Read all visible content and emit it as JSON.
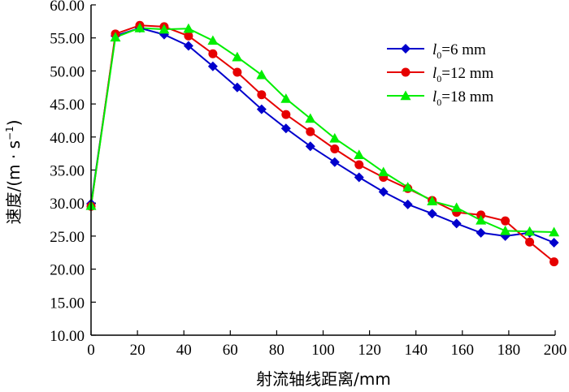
{
  "chart_data": {
    "type": "line",
    "xlabel": "射流轴线距离/mm",
    "ylabel": "速度/(m · s⁻¹)",
    "ylabel_parts": {
      "main": "速度/(m · s",
      "sup": "−1",
      "close": ")"
    },
    "xlim": [
      0,
      200
    ],
    "ylim": [
      10,
      60
    ],
    "x_ticks": [
      "0",
      "20",
      "40",
      "60",
      "80",
      "100",
      "120",
      "140",
      "160",
      "180",
      "200"
    ],
    "y_ticks": [
      "10.00",
      "15.00",
      "20.00",
      "25.00",
      "30.00",
      "35.00",
      "40.00",
      "45.00",
      "50.00",
      "55.00",
      "60.00"
    ],
    "grid": false,
    "legend_position": "top-right",
    "series": [
      {
        "name": "l0=6 mm",
        "label_italic": "l",
        "label_sub": "0",
        "label_rest": "=6 mm",
        "color": "#0000cc",
        "marker": "diamond",
        "x": [
          0,
          10.5,
          21,
          31.5,
          42,
          52.5,
          63,
          73.5,
          84,
          94.5,
          105,
          115.5,
          126,
          136.5,
          147,
          157.5,
          168,
          178.5,
          189,
          199.5
        ],
        "values": [
          29.9,
          55.3,
          56.5,
          55.5,
          53.8,
          50.7,
          47.5,
          44.2,
          41.3,
          38.6,
          36.2,
          33.9,
          31.7,
          29.8,
          28.4,
          26.9,
          25.5,
          25.0,
          25.5,
          24.0
        ]
      },
      {
        "name": "l0=12 mm",
        "label_italic": "l",
        "label_sub": "0",
        "label_rest": "=12 mm",
        "color": "#e60000",
        "marker": "circle",
        "x": [
          0,
          10.5,
          21,
          31.5,
          42,
          52.5,
          63,
          73.5,
          84,
          94.5,
          105,
          115.5,
          126,
          136.5,
          147,
          157.5,
          168,
          178.5,
          189,
          199.5
        ],
        "values": [
          29.5,
          55.6,
          56.9,
          56.7,
          55.3,
          52.6,
          49.8,
          46.4,
          43.4,
          40.8,
          38.2,
          35.8,
          33.9,
          32.2,
          30.4,
          28.6,
          28.2,
          27.3,
          24.1,
          21.1
        ]
      },
      {
        "name": "l0=18 mm",
        "label_italic": "l",
        "label_sub": "0",
        "label_rest": "=18 mm",
        "color": "#00ee00",
        "marker": "triangle",
        "x": [
          0,
          10.5,
          21,
          31.5,
          42,
          52.5,
          63,
          73.5,
          84,
          94.5,
          105,
          115.5,
          126,
          136.5,
          147,
          157.5,
          168,
          178.5,
          189,
          199.5
        ],
        "values": [
          29.6,
          55.1,
          56.5,
          56.3,
          56.4,
          54.6,
          52.1,
          49.4,
          45.8,
          42.8,
          39.8,
          37.3,
          34.7,
          32.4,
          30.3,
          29.3,
          27.4,
          25.8,
          25.7,
          25.6
        ]
      }
    ]
  }
}
